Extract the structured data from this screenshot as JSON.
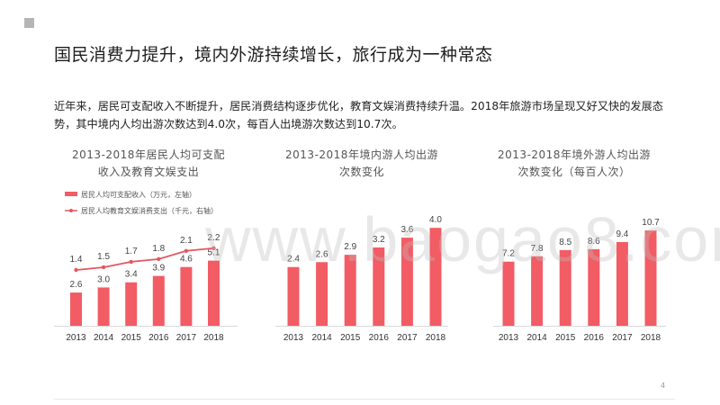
{
  "slide": {
    "title": "国民消费力提升，境内外游持续增长，旅行成为一种常态",
    "intro": "近年来，居民可支配收入不断提升，居民消费结构逐步优化，教育文娱消费持续升温。2018年旅游市场呈现又好又快的发展态势，其中境内人均出游次数达到4.0次，每百人出境游次数达到10.7次。",
    "watermark": "www.baogao8.com",
    "page_number": "4"
  },
  "colors": {
    "bar": "#f25c64",
    "line": "#e4575f",
    "accent_square": "#b7b4b6"
  },
  "chart_data": [
    {
      "type": "bar",
      "title_lines": [
        "2013-2018年居民人均可支配",
        "收入及教育文娱支出"
      ],
      "categories": [
        "2013",
        "2014",
        "2015",
        "2016",
        "2017",
        "2018"
      ],
      "series": [
        {
          "name": "居民人均可支配收入（万元，左轴）",
          "type": "bar",
          "values": [
            2.6,
            3.0,
            3.4,
            3.9,
            4.6,
            5.1
          ]
        },
        {
          "name": "居民人均教育文娱消费支出（千元，右轴）",
          "type": "line",
          "values": [
            1.4,
            1.5,
            1.7,
            1.8,
            2.1,
            2.2
          ]
        }
      ],
      "legend_position": "top-left"
    },
    {
      "type": "bar",
      "title_lines": [
        "2013-2018年境内游人均出游",
        "次数变化"
      ],
      "categories": [
        "2013",
        "2014",
        "2015",
        "2016",
        "2017",
        "2018"
      ],
      "series": [
        {
          "values": [
            2.4,
            2.6,
            2.9,
            3.2,
            3.6,
            4.0
          ]
        }
      ]
    },
    {
      "type": "bar",
      "title_lines": [
        "2013-2018年境外游人均出游",
        "次数变化（每百人次）"
      ],
      "categories": [
        "2013",
        "2014",
        "2015",
        "2016",
        "2017",
        "2018"
      ],
      "series": [
        {
          "values": [
            7.2,
            7.8,
            8.5,
            8.6,
            9.4,
            10.7
          ]
        }
      ]
    }
  ]
}
